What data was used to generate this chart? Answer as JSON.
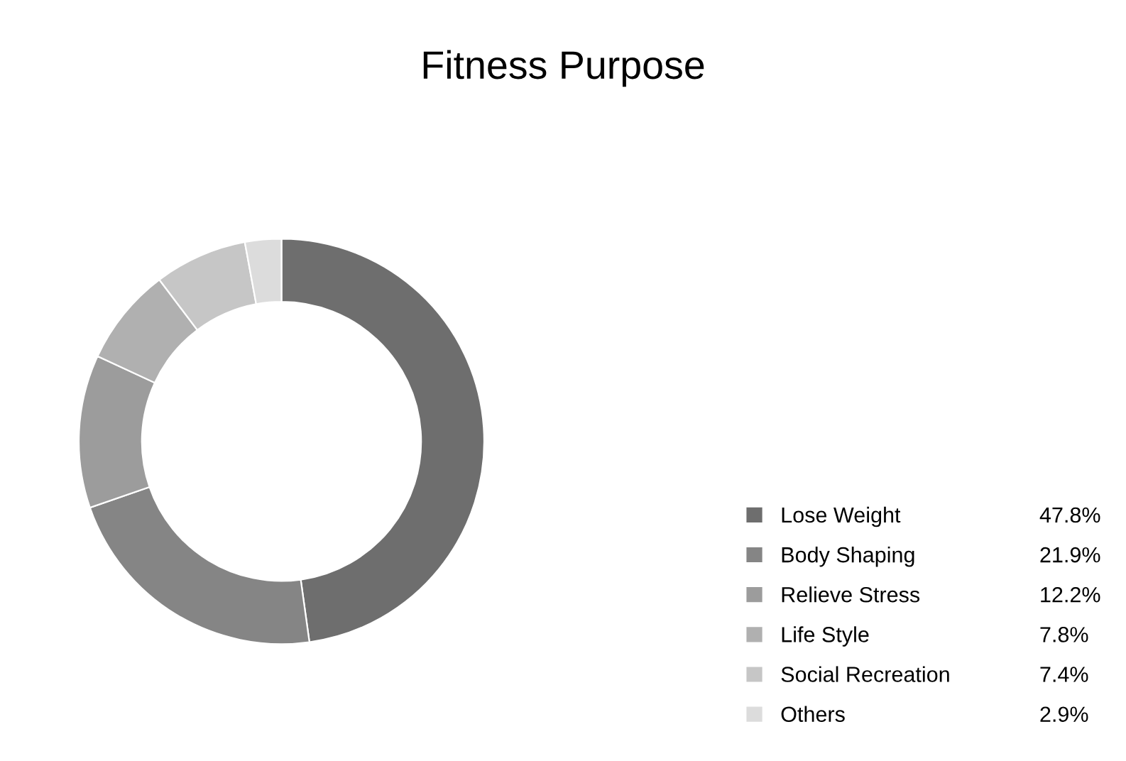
{
  "chart_data": {
    "type": "donut",
    "title": "Fitness Purpose",
    "categories": [
      "Lose Weight",
      "Body Shaping",
      "Relieve Stress",
      "Life Style",
      "Social Recreation",
      "Others"
    ],
    "values": [
      47.8,
      21.9,
      12.2,
      7.8,
      7.4,
      2.9
    ],
    "value_labels": [
      "47.8%",
      "21.9%",
      "12.2%",
      "7.8%",
      "7.4%",
      "2.9%"
    ],
    "colors": [
      "#6e6e6e",
      "#858585",
      "#9c9c9c",
      "#b0b0b0",
      "#c6c6c6",
      "#dcdcdc"
    ],
    "legend": "bottom right"
  }
}
